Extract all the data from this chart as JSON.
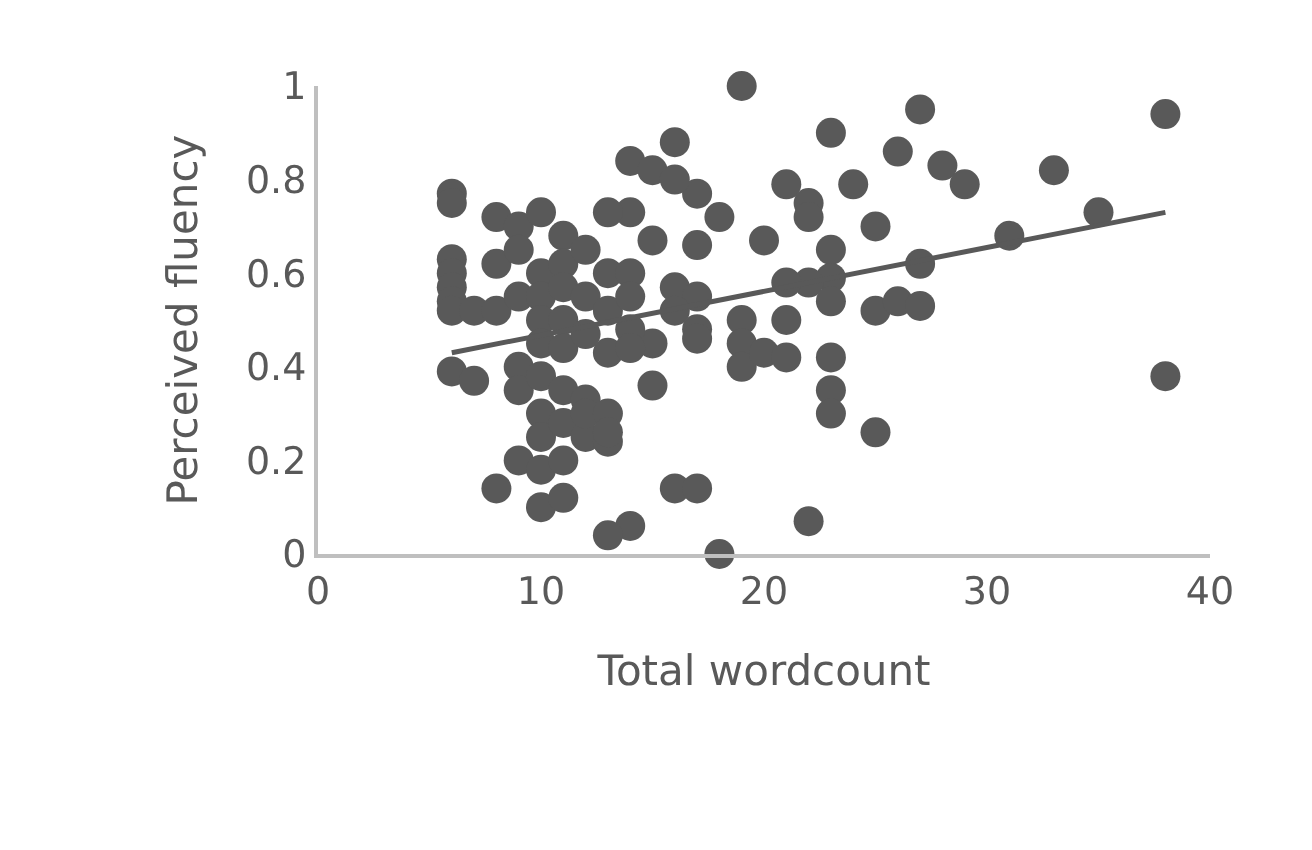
{
  "chart_data": {
    "type": "scatter",
    "xlabel": "Total wordcount",
    "ylabel": "Perceived fluency",
    "xlim": [
      0,
      40
    ],
    "xticks": [
      0,
      10,
      20,
      30,
      40
    ],
    "ylim": [
      0,
      1
    ],
    "yticks": [
      0,
      0.2,
      0.4,
      0.6,
      0.8,
      1
    ],
    "marker": "circle",
    "series": [
      {
        "color": "#595959",
        "x": [
          19,
          27,
          38,
          38,
          26,
          23,
          16,
          28,
          29,
          33,
          35,
          31,
          27,
          25,
          24,
          21,
          22,
          22,
          20,
          23,
          23,
          22,
          21,
          23,
          25,
          26,
          27,
          21,
          19,
          19,
          19,
          20,
          21,
          23,
          23,
          23,
          25,
          18,
          17,
          17,
          16,
          17,
          17,
          17,
          15,
          14,
          14,
          15,
          16,
          15,
          16,
          15,
          16,
          17,
          14,
          13,
          18,
          22,
          6,
          6,
          6,
          6,
          6,
          6,
          6,
          6,
          7,
          7,
          8,
          8,
          8,
          8,
          9,
          9,
          9,
          9,
          9,
          9,
          10,
          10,
          10,
          10,
          10,
          10,
          10,
          10,
          10,
          10,
          11,
          11,
          11,
          11,
          11,
          11,
          11,
          11,
          11,
          12,
          12,
          12,
          12,
          12,
          12,
          13,
          13,
          13,
          13,
          13,
          13,
          13,
          14,
          14,
          14,
          14
        ],
        "values": [
          1.0,
          0.95,
          0.94,
          0.38,
          0.86,
          0.9,
          0.88,
          0.83,
          0.79,
          0.82,
          0.73,
          0.68,
          0.62,
          0.7,
          0.79,
          0.79,
          0.75,
          0.72,
          0.67,
          0.65,
          0.59,
          0.58,
          0.58,
          0.54,
          0.52,
          0.54,
          0.53,
          0.5,
          0.5,
          0.45,
          0.4,
          0.43,
          0.42,
          0.42,
          0.35,
          0.3,
          0.26,
          0.72,
          0.77,
          0.66,
          0.57,
          0.55,
          0.48,
          0.46,
          0.67,
          0.73,
          0.84,
          0.82,
          0.8,
          0.45,
          0.52,
          0.36,
          0.14,
          0.14,
          0.06,
          0.04,
          0.0,
          0.07,
          0.77,
          0.75,
          0.63,
          0.6,
          0.57,
          0.54,
          0.52,
          0.39,
          0.37,
          0.52,
          0.72,
          0.62,
          0.52,
          0.14,
          0.7,
          0.65,
          0.55,
          0.4,
          0.35,
          0.2,
          0.73,
          0.6,
          0.55,
          0.5,
          0.45,
          0.38,
          0.3,
          0.25,
          0.18,
          0.1,
          0.68,
          0.62,
          0.57,
          0.5,
          0.44,
          0.35,
          0.28,
          0.12,
          0.2,
          0.65,
          0.55,
          0.47,
          0.33,
          0.25,
          0.3,
          0.73,
          0.6,
          0.52,
          0.43,
          0.3,
          0.24,
          0.26,
          0.6,
          0.55,
          0.48,
          0.44
        ]
      },
      {
        "type": "line",
        "color": "#595959",
        "marker": "none",
        "x": [
          6,
          38
        ],
        "values": [
          0.43,
          0.73
        ]
      }
    ]
  }
}
